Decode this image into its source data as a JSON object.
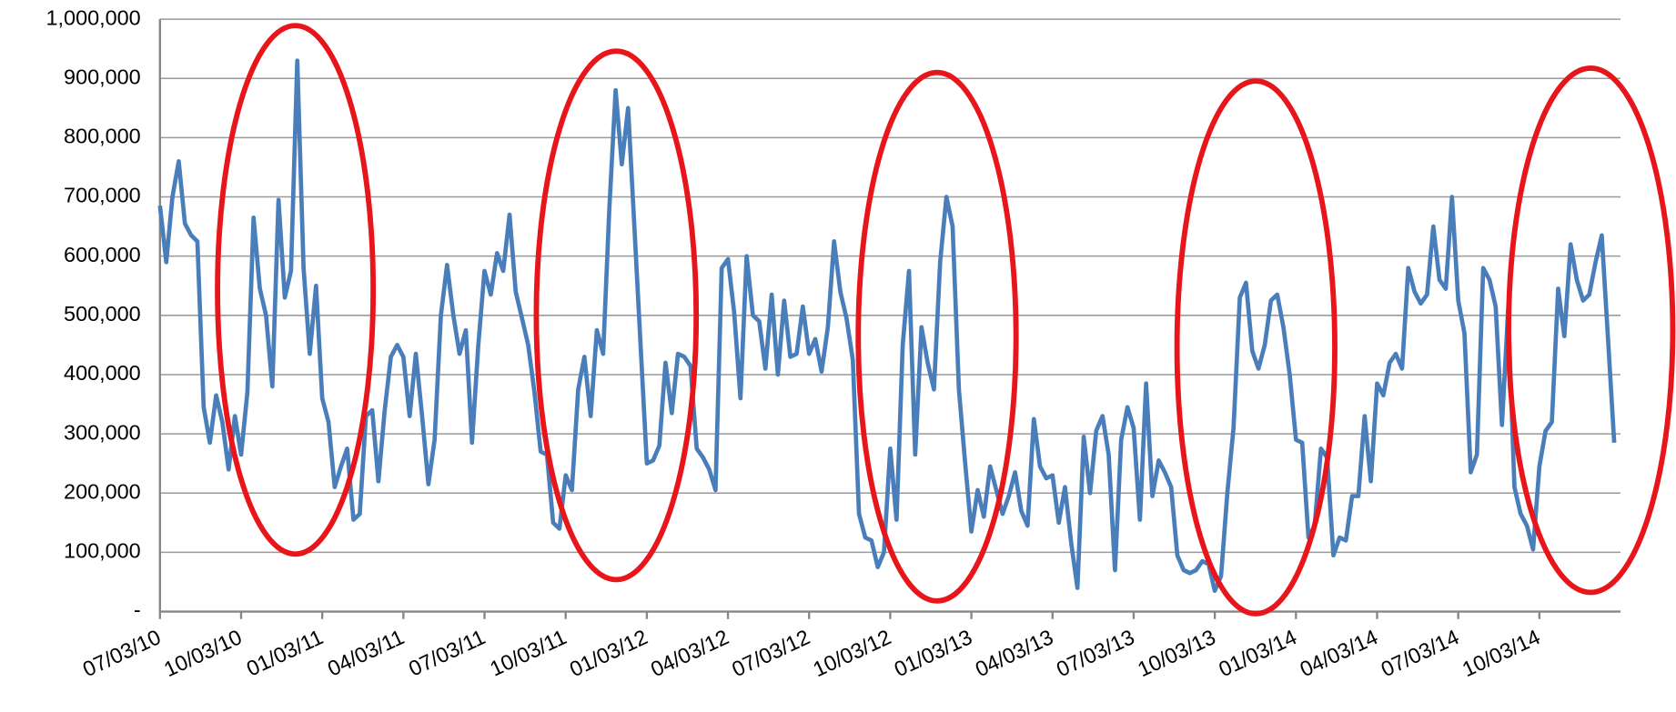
{
  "chart_data": {
    "type": "line",
    "categories": [
      "07/03/10",
      null,
      null,
      null,
      null,
      null,
      null,
      null,
      null,
      null,
      null,
      null,
      null,
      "10/03/10",
      null,
      null,
      null,
      null,
      null,
      null,
      null,
      null,
      null,
      null,
      null,
      null,
      "01/03/11",
      null,
      null,
      null,
      null,
      null,
      null,
      null,
      null,
      null,
      null,
      null,
      null,
      "04/03/11",
      null,
      null,
      null,
      null,
      null,
      null,
      null,
      null,
      null,
      null,
      null,
      null,
      "07/03/11",
      null,
      null,
      null,
      null,
      null,
      null,
      null,
      null,
      null,
      null,
      null,
      null,
      "10/03/11",
      null,
      null,
      null,
      null,
      null,
      null,
      null,
      null,
      null,
      null,
      null,
      null,
      "01/03/12",
      null,
      null,
      null,
      null,
      null,
      null,
      null,
      null,
      null,
      null,
      null,
      null,
      "04/03/12",
      null,
      null,
      null,
      null,
      null,
      null,
      null,
      null,
      null,
      null,
      null,
      null,
      "07/03/12",
      null,
      null,
      null,
      null,
      null,
      null,
      null,
      null,
      null,
      null,
      null,
      null,
      "10/03/12",
      null,
      null,
      null,
      null,
      null,
      null,
      null,
      null,
      null,
      null,
      null,
      null,
      "01/03/13",
      null,
      null,
      null,
      null,
      null,
      null,
      null,
      null,
      null,
      null,
      null,
      null,
      "04/03/13",
      null,
      null,
      null,
      null,
      null,
      null,
      null,
      null,
      null,
      null,
      null,
      null,
      "07/03/13",
      null,
      null,
      null,
      null,
      null,
      null,
      null,
      null,
      null,
      null,
      null,
      null,
      "10/03/13",
      null,
      null,
      null,
      null,
      null,
      null,
      null,
      null,
      null,
      null,
      null,
      null,
      "01/03/14",
      null,
      null,
      null,
      null,
      null,
      null,
      null,
      null,
      null,
      null,
      null,
      null,
      "04/03/14",
      null,
      null,
      null,
      null,
      null,
      null,
      null,
      null,
      null,
      null,
      null,
      null,
      "07/03/14",
      null,
      null,
      null,
      null,
      null,
      null,
      null,
      null,
      null,
      null,
      null,
      null,
      "10/03/14",
      null,
      null,
      null,
      null,
      null,
      null,
      null,
      null,
      null,
      null,
      null,
      null
    ],
    "values": [
      685000,
      590000,
      700000,
      760000,
      655000,
      635000,
      625000,
      345000,
      285000,
      365000,
      320000,
      240000,
      330000,
      265000,
      370000,
      665000,
      545000,
      500000,
      380000,
      695000,
      530000,
      575000,
      930000,
      580000,
      435000,
      550000,
      360000,
      320000,
      210000,
      245000,
      275000,
      155000,
      165000,
      330000,
      340000,
      220000,
      340000,
      430000,
      450000,
      430000,
      330000,
      435000,
      330000,
      215000,
      290000,
      500000,
      585000,
      500000,
      435000,
      475000,
      285000,
      450000,
      575000,
      535000,
      605000,
      575000,
      670000,
      540000,
      495000,
      450000,
      370000,
      270000,
      265000,
      150000,
      140000,
      230000,
      205000,
      375000,
      430000,
      330000,
      475000,
      435000,
      680000,
      880000,
      755000,
      850000,
      650000,
      450000,
      250000,
      255000,
      280000,
      420000,
      335000,
      435000,
      430000,
      415000,
      275000,
      260000,
      240000,
      205000,
      580000,
      595000,
      505000,
      360000,
      600000,
      500000,
      490000,
      410000,
      535000,
      400000,
      525000,
      430000,
      435000,
      515000,
      435000,
      460000,
      405000,
      480000,
      625000,
      540000,
      495000,
      425000,
      165000,
      125000,
      120000,
      75000,
      100000,
      275000,
      155000,
      450000,
      575000,
      265000,
      480000,
      420000,
      375000,
      590000,
      700000,
      650000,
      375000,
      250000,
      135000,
      205000,
      160000,
      245000,
      205000,
      165000,
      195000,
      235000,
      170000,
      145000,
      325000,
      245000,
      225000,
      230000,
      150000,
      210000,
      115000,
      40000,
      295000,
      200000,
      305000,
      330000,
      265000,
      70000,
      290000,
      345000,
      310000,
      155000,
      385000,
      195000,
      255000,
      235000,
      210000,
      95000,
      70000,
      65000,
      70000,
      85000,
      80000,
      35000,
      60000,
      200000,
      310000,
      530000,
      555000,
      440000,
      410000,
      450000,
      525000,
      535000,
      480000,
      400000,
      290000,
      285000,
      125000,
      145000,
      275000,
      260000,
      95000,
      125000,
      120000,
      195000,
      195000,
      330000,
      220000,
      385000,
      365000,
      420000,
      435000,
      410000,
      580000,
      540000,
      520000,
      535000,
      650000,
      560000,
      545000,
      700000,
      525000,
      470000,
      235000,
      265000,
      580000,
      560000,
      515000,
      315000,
      510000,
      210000,
      165000,
      145000,
      105000,
      245000,
      305000,
      320000,
      545000,
      465000,
      620000,
      560000,
      525000,
      535000,
      590000,
      635000,
      460000,
      285000
    ],
    "color": "#4a7ebb",
    "ylim": [
      0,
      1000000
    ],
    "yticks": [
      {
        "value": 0,
        "label": "-"
      },
      {
        "value": 100000,
        "label": "100,000"
      },
      {
        "value": 200000,
        "label": "200,000"
      },
      {
        "value": 300000,
        "label": "300,000"
      },
      {
        "value": 400000,
        "label": "400,000"
      },
      {
        "value": 500000,
        "label": "500,000"
      },
      {
        "value": 600000,
        "label": "600,000"
      },
      {
        "value": 700000,
        "label": "700,000"
      },
      {
        "value": 800000,
        "label": "800,000"
      },
      {
        "value": 900000,
        "label": "900,000"
      },
      {
        "value": 1000000,
        "label": "1,000,000"
      }
    ],
    "grid": true
  }
}
